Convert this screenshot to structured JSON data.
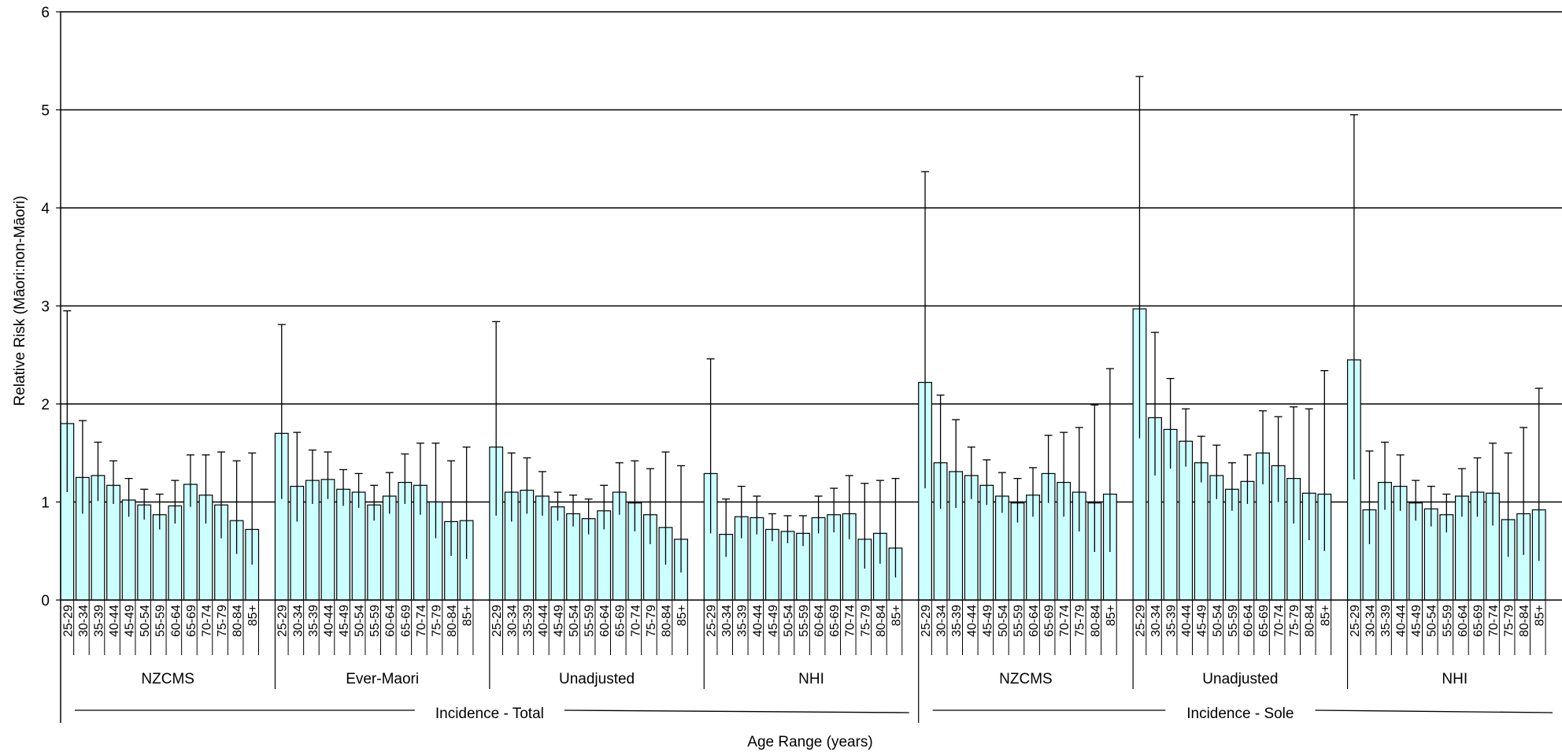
{
  "chart_data": {
    "type": "bar",
    "ylabel": "Relative Risk (Māori:non-Māori)",
    "xlabel": "Age Range (years)",
    "ylim": [
      0,
      6
    ],
    "yticks": [
      "0",
      "1",
      "2",
      "3",
      "4",
      "5",
      "6"
    ],
    "grid": "horizontal",
    "colors": {
      "bar_fill": "#ccffff",
      "bar_stroke": "#000000",
      "grid": "#000000"
    },
    "categories": [
      "25-29",
      "30-34",
      "35-39",
      "40-44",
      "45-49",
      "50-54",
      "55-59",
      "60-64",
      "65-69",
      "70-74",
      "75-79",
      "80-84",
      "85+"
    ],
    "groups": [
      {
        "label": "NZCMS",
        "super": "Incidence - Total",
        "values": [
          1.8,
          1.25,
          1.27,
          1.17,
          1.02,
          0.97,
          0.87,
          0.96,
          1.18,
          1.07,
          0.97,
          0.81,
          0.72
        ],
        "lower": [
          1.1,
          0.88,
          1.01,
          0.98,
          0.85,
          0.82,
          0.72,
          0.78,
          0.95,
          0.78,
          0.63,
          0.47,
          0.36
        ],
        "upper": [
          2.95,
          1.83,
          1.61,
          1.42,
          1.24,
          1.13,
          1.08,
          1.22,
          1.48,
          1.48,
          1.51,
          1.42,
          1.5
        ]
      },
      {
        "label": "Ever-Maori",
        "super": "Incidence - Total",
        "values": [
          1.7,
          1.16,
          1.22,
          1.23,
          1.13,
          1.1,
          0.97,
          1.06,
          1.2,
          1.17,
          1.0,
          0.8,
          0.81
        ],
        "lower": [
          1.03,
          0.8,
          0.98,
          1.03,
          0.96,
          0.94,
          0.81,
          0.88,
          0.98,
          0.87,
          0.63,
          0.45,
          0.42
        ],
        "upper": [
          2.81,
          1.71,
          1.53,
          1.51,
          1.33,
          1.29,
          1.17,
          1.3,
          1.49,
          1.6,
          1.6,
          1.42,
          1.56
        ]
      },
      {
        "label": "Unadjusted",
        "super": "Incidence - Total",
        "values": [
          1.56,
          1.1,
          1.12,
          1.06,
          0.95,
          0.88,
          0.83,
          0.91,
          1.1,
          0.99,
          0.87,
          0.74,
          0.62
        ],
        "lower": [
          0.86,
          0.8,
          0.88,
          0.86,
          0.81,
          0.75,
          0.67,
          0.72,
          0.87,
          0.7,
          0.57,
          0.36,
          0.28
        ],
        "upper": [
          2.84,
          1.5,
          1.45,
          1.31,
          1.1,
          1.07,
          1.03,
          1.17,
          1.4,
          1.42,
          1.34,
          1.51,
          1.37
        ]
      },
      {
        "label": "NHI",
        "super": "Incidence - Total",
        "values": [
          1.29,
          0.67,
          0.85,
          0.84,
          0.72,
          0.7,
          0.68,
          0.84,
          0.87,
          0.88,
          0.62,
          0.68,
          0.53
        ],
        "lower": [
          0.68,
          0.44,
          0.63,
          0.67,
          0.6,
          0.58,
          0.55,
          0.68,
          0.69,
          0.62,
          0.32,
          0.37,
          0.23
        ],
        "upper": [
          2.46,
          1.03,
          1.16,
          1.06,
          0.88,
          0.86,
          0.86,
          1.06,
          1.14,
          1.27,
          1.19,
          1.22,
          1.24
        ]
      },
      {
        "label": "NZCMS",
        "super": "Incidence - Sole",
        "values": [
          2.22,
          1.4,
          1.31,
          1.27,
          1.17,
          1.06,
          0.99,
          1.07,
          1.29,
          1.2,
          1.1,
          0.99,
          1.08
        ],
        "lower": [
          1.14,
          0.93,
          0.94,
          1.03,
          0.97,
          0.89,
          0.79,
          0.85,
          0.99,
          0.85,
          0.7,
          0.49,
          0.49
        ],
        "upper": [
          4.37,
          2.09,
          1.84,
          1.56,
          1.43,
          1.3,
          1.24,
          1.35,
          1.68,
          1.71,
          1.76,
          1.99,
          2.36
        ]
      },
      {
        "label": "Unadjusted",
        "super": "Incidence - Sole",
        "values": [
          2.97,
          1.86,
          1.74,
          1.62,
          1.4,
          1.27,
          1.13,
          1.21,
          1.5,
          1.37,
          1.24,
          1.09,
          1.08
        ],
        "lower": [
          1.65,
          1.27,
          1.34,
          1.36,
          1.2,
          1.03,
          0.91,
          0.98,
          1.18,
          1.0,
          0.78,
          0.61,
          0.5
        ],
        "upper": [
          5.34,
          2.73,
          2.26,
          1.95,
          1.67,
          1.58,
          1.4,
          1.48,
          1.93,
          1.87,
          1.97,
          1.95,
          2.34
        ]
      },
      {
        "label": "NHI",
        "super": "Incidence - Sole",
        "values": [
          2.45,
          0.92,
          1.2,
          1.16,
          0.99,
          0.93,
          0.87,
          1.06,
          1.1,
          1.09,
          0.82,
          0.88,
          0.92
        ],
        "lower": [
          1.23,
          0.57,
          0.92,
          0.91,
          0.81,
          0.75,
          0.69,
          0.85,
          0.85,
          0.76,
          0.44,
          0.46,
          0.4
        ],
        "upper": [
          4.95,
          1.52,
          1.61,
          1.48,
          1.22,
          1.16,
          1.08,
          1.34,
          1.45,
          1.6,
          1.5,
          1.76,
          2.16
        ]
      }
    ],
    "super_groups": [
      "Incidence - Total",
      "Incidence - Sole"
    ]
  }
}
